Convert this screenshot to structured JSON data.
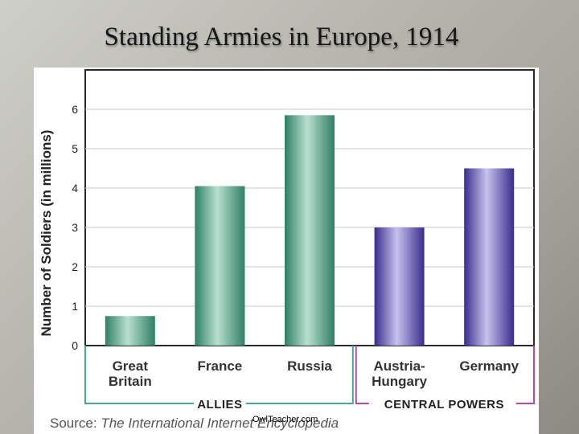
{
  "page": {
    "title": "Standing Armies in Europe, 1914",
    "source_label": "Source:",
    "source_text": "The International Internet Encyclopedia",
    "watermark": "OwlTeacher.com"
  },
  "chart_data": {
    "type": "bar",
    "title": "Standing Armies in Europe, 1914",
    "ylabel": "Number of Soldiers (in millions)",
    "xlabel": "",
    "ylim": [
      0,
      7
    ],
    "yticks": [
      0,
      1,
      2,
      3,
      4,
      5,
      6
    ],
    "grid": true,
    "categories": [
      {
        "lines": [
          "Great",
          "Britain"
        ]
      },
      {
        "lines": [
          "France"
        ]
      },
      {
        "lines": [
          "Russia"
        ]
      },
      {
        "lines": [
          "Austria-",
          "Hungary"
        ]
      },
      {
        "lines": [
          "Germany"
        ]
      }
    ],
    "values": [
      0.75,
      4.05,
      5.85,
      3.0,
      4.5
    ],
    "groups": [
      {
        "label": "ALLIES",
        "members": [
          0,
          1,
          2
        ],
        "color": "#3a8f74"
      },
      {
        "label": "CENTRAL POWERS",
        "members": [
          3,
          4
        ],
        "color": "#4a3aa0"
      }
    ],
    "bracket_colors": {
      "allies": "#48a88c",
      "central": "#b04cb0"
    }
  }
}
